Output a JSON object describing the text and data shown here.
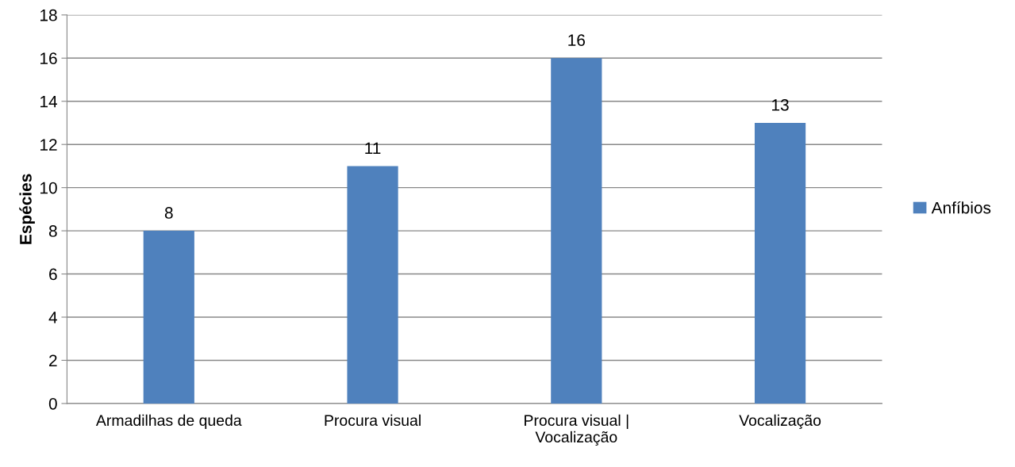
{
  "chart_data": {
    "type": "bar",
    "ylabel": "Espécies",
    "categories": [
      "Armadilhas de queda",
      "Procura visual",
      "Procura visual |\nVocalização",
      "Vocalização"
    ],
    "series": [
      {
        "name": "Anfíbios",
        "color": "#4f81bd",
        "values": [
          8,
          11,
          16,
          13
        ]
      }
    ],
    "ylim": [
      0,
      18
    ],
    "yticks": [
      0,
      2,
      4,
      6,
      8,
      10,
      12,
      14,
      16,
      18
    ],
    "grid": "y",
    "legend": "right",
    "data_labels": true
  }
}
